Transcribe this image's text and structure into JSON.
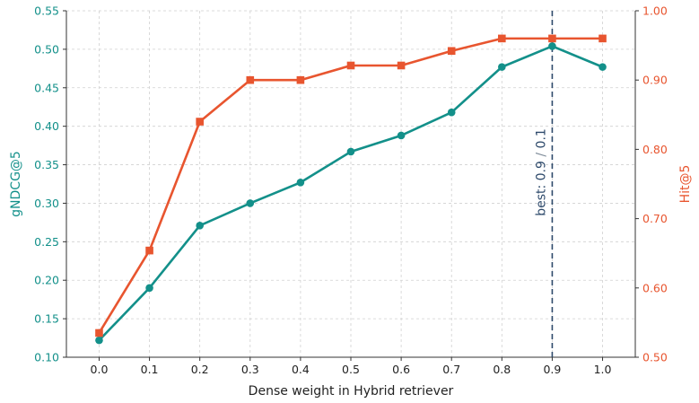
{
  "chart_data": {
    "type": "line",
    "xlabel": "Dense weight in Hybrid retriever",
    "ylabel_left": "gNDCG@5",
    "ylabel_right": "Hit@5",
    "x": [
      0.0,
      0.1,
      0.2,
      0.3,
      0.4,
      0.5,
      0.6,
      0.7,
      0.8,
      0.9,
      1.0
    ],
    "xticks": [
      "0.0",
      "0.1",
      "0.2",
      "0.3",
      "0.4",
      "0.5",
      "0.6",
      "0.7",
      "0.8",
      "0.9",
      "1.0"
    ],
    "xlim": [
      -0.065,
      1.065
    ],
    "ylim_left": [
      0.1,
      0.55
    ],
    "yticks_left": [
      "0.10",
      "0.15",
      "0.20",
      "0.25",
      "0.30",
      "0.35",
      "0.40",
      "0.45",
      "0.50",
      "0.55"
    ],
    "ylim_right": [
      0.5,
      1.0
    ],
    "yticks_right": [
      "0.50",
      "0.60",
      "0.70",
      "0.80",
      "0.90",
      "1.00"
    ],
    "grid": true,
    "series": [
      {
        "axis": "left",
        "marker": "circle",
        "color": "#13908a",
        "values": [
          0.122,
          0.19,
          0.271,
          0.3,
          0.327,
          0.367,
          0.388,
          0.418,
          0.477,
          0.504,
          0.477
        ]
      },
      {
        "axis": "right",
        "marker": "square",
        "color": "#e8552f",
        "values": [
          0.535,
          0.654,
          0.84,
          0.9,
          0.9,
          0.921,
          0.921,
          0.942,
          0.96,
          0.96,
          0.96
        ]
      }
    ],
    "annotations": [
      {
        "type": "vline",
        "x": 0.9,
        "style": "dashed",
        "color": "#2e4a6b",
        "label_main": "best: 0.9",
        "label_sep": " / ",
        "label_rest": "0.1"
      }
    ],
    "colors": {
      "left_axis": "#13908a",
      "right_axis": "#e8552f",
      "annotation": "#2e4a6b",
      "annotation_muted": "#7f8c99"
    }
  }
}
